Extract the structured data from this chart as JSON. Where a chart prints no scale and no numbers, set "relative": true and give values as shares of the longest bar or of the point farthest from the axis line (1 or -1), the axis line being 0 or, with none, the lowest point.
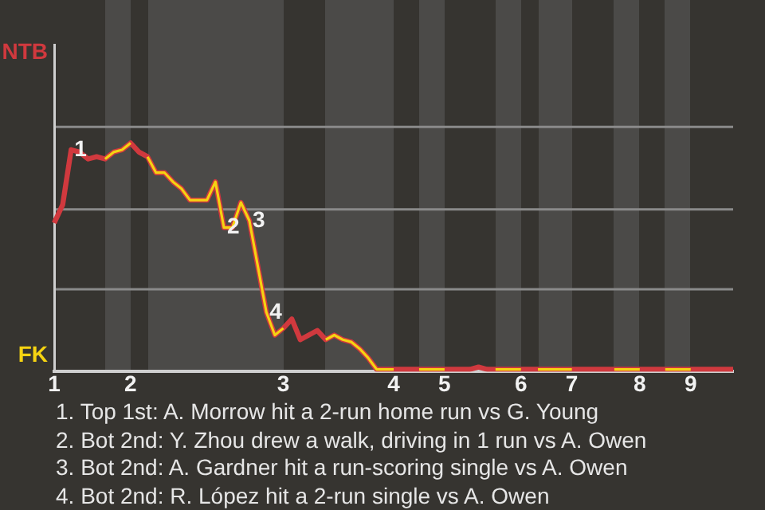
{
  "chart_data": {
    "type": "line",
    "relative": true,
    "categories": [
      "1",
      null,
      null,
      null,
      null,
      null,
      null,
      null,
      null,
      "2",
      null,
      null,
      null,
      null,
      null,
      null,
      null,
      null,
      null,
      null,
      null,
      null,
      null,
      null,
      null,
      null,
      null,
      "3",
      null,
      null,
      null,
      null,
      null,
      null,
      null,
      null,
      null,
      null,
      null,
      null,
      "4",
      null,
      null,
      null,
      null,
      null,
      "5",
      null,
      null,
      null,
      null,
      null,
      null,
      null,
      null,
      "6",
      null,
      null,
      null,
      null,
      null,
      "7",
      null,
      null,
      null,
      null,
      null,
      null,
      null,
      "8",
      null,
      null,
      null,
      null,
      null,
      "9",
      null,
      null,
      null,
      null,
      null
    ],
    "marker": "none",
    "line_style": "solid",
    "series": [
      {
        "name": "NTB",
        "color": "#d0393e",
        "values": [
          0.65,
          0.73,
          0.97,
          0.96,
          0.93,
          0.94,
          0.93,
          0.96,
          0.97,
          1,
          0.96,
          0.94,
          0.87,
          0.87,
          0.83,
          0.8,
          0.75,
          0.75,
          0.75,
          0.83,
          0.63,
          0.63,
          0.74,
          0.66,
          0.46,
          0.26,
          0.16,
          0.19,
          0.23,
          0.14,
          0.16,
          0.18,
          0.14,
          0.16,
          0.14,
          0.13,
          0.1,
          0.06,
          0.01,
          0.01,
          0.01,
          0.01,
          0.01,
          0.01,
          0.01,
          0.01,
          0.01,
          0.01,
          0.01,
          0.01,
          0.02,
          0.01,
          0.01,
          0.01,
          0.01,
          0.01,
          0.01,
          0.01,
          0.01,
          0.01,
          0.01,
          0.01,
          0.01,
          0.01,
          0.01,
          0.01,
          0.01,
          0.01,
          0.01,
          0.01,
          0.01,
          0.01,
          0.01,
          0.01,
          0.01,
          0.01,
          0.01,
          0.01,
          0.01,
          0.01,
          0.01
        ]
      },
      {
        "name": "FK",
        "color": "#f5d312",
        "values": [
          null,
          null,
          null,
          null,
          null,
          null,
          0.93,
          0.96,
          0.97,
          1,
          null,
          0.94,
          0.87,
          0.87,
          0.83,
          0.8,
          0.75,
          0.75,
          0.75,
          0.83,
          0.63,
          0.63,
          0.74,
          0.66,
          0.46,
          0.26,
          0.16,
          0.19,
          null,
          null,
          null,
          null,
          0.14,
          0.16,
          0.14,
          0.13,
          0.1,
          0.06,
          0.01,
          0.01,
          0.01,
          null,
          null,
          0.01,
          0.01,
          0.01,
          0.01,
          null,
          null,
          null,
          null,
          null,
          0.01,
          0.01,
          0.01,
          0.01,
          null,
          0.01,
          0.01,
          0.01,
          0.01,
          0.01,
          null,
          null,
          null,
          null,
          0.01,
          0.01,
          0.01,
          0.01,
          null,
          null,
          0.01,
          0.01,
          0.01,
          0.01,
          null,
          null,
          null,
          null,
          null
        ]
      }
    ],
    "ref_lines": [
      {
        "axis": "y",
        "value": 0.36,
        "color": "#8a8a8a"
      },
      {
        "axis": "y",
        "value": 0.71,
        "color": "#8a8a8a"
      },
      {
        "axis": "y",
        "value": 1.07,
        "color": "#8a8a8a"
      }
    ],
    "annotations": [
      {
        "text": "1",
        "y": 0.97
      },
      {
        "text": "2",
        "y": 0.63
      },
      {
        "text": "3",
        "y": 0.66
      },
      {
        "text": "4",
        "y": 0.26
      },
      "1. Top 1st: A. Morrow hit a 2-run home run vs G. Young",
      "2. Bot 2nd: Y. Zhou drew a walk, driving in 1 run vs A. Owen",
      "3. Bot 2nd: A. Gardner hit a run-scoring single vs A. Owen",
      "4. Bot 2nd: R. López hit a 2-run single vs A. Owen"
    ]
  }
}
